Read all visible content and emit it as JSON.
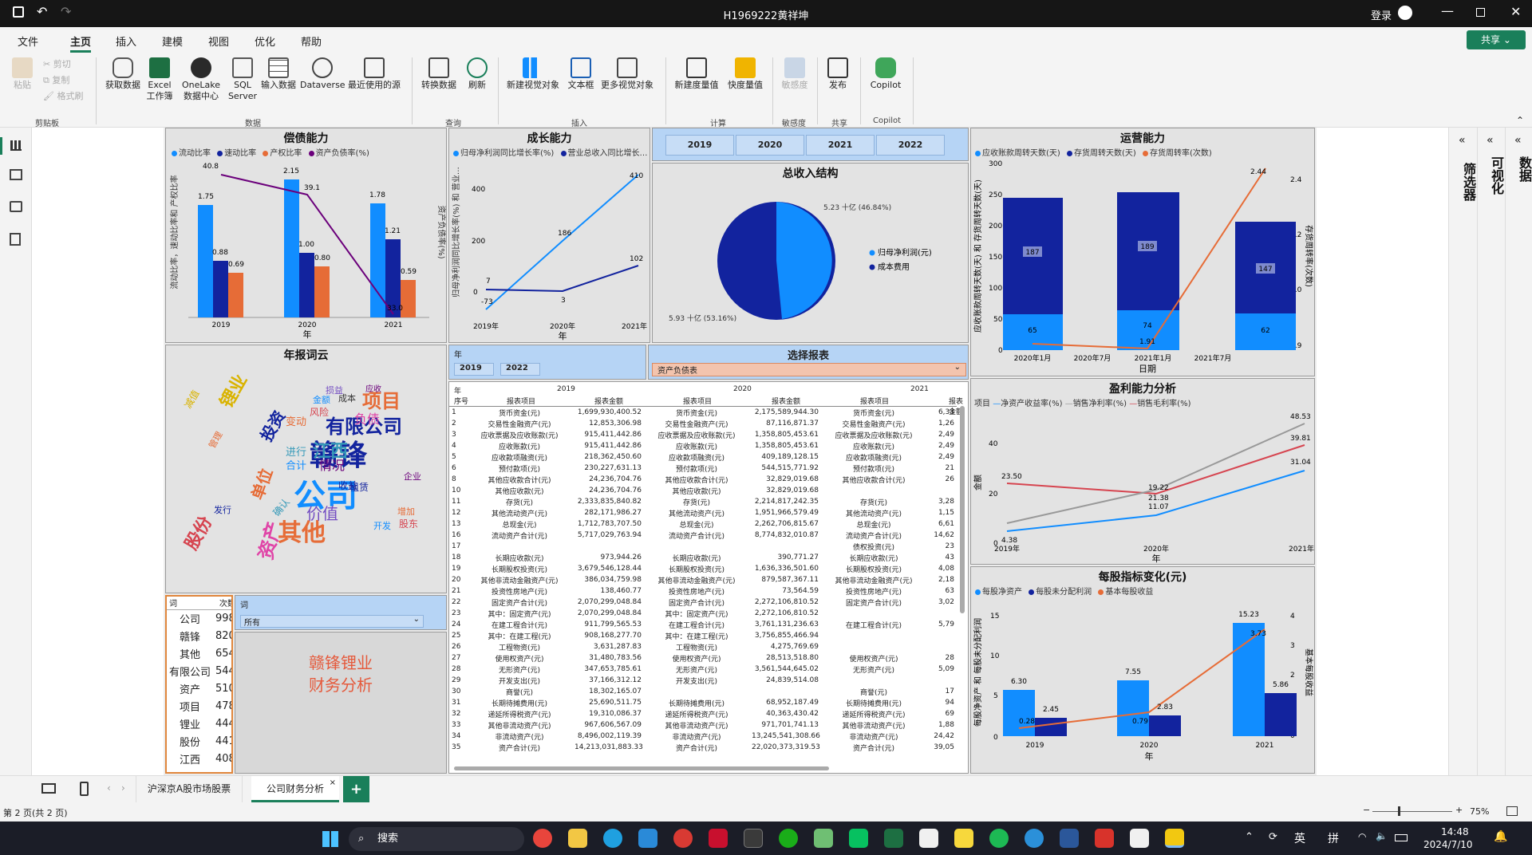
{
  "window": {
    "title": "H1969222黄祥坤",
    "login": "登录"
  },
  "menu": [
    "文件",
    "主页",
    "插入",
    "建模",
    "视图",
    "优化",
    "帮助"
  ],
  "share": "共享",
  "ribbon": {
    "clip": [
      "粘贴",
      "剪切",
      "复制",
      "格式刷"
    ],
    "clip_group": "剪贴板",
    "data_btns": [
      "获取数据",
      "Excel 工作簿",
      "OneLake 数据中心",
      "SQL Server",
      "输入数据",
      "Dataverse",
      "最近使用的源"
    ],
    "data_group": "数据",
    "query_btns": [
      "转换数据",
      "刷新"
    ],
    "query_group": "查询",
    "insert_btns": [
      "新建视觉对象",
      "文本框",
      "更多视觉对象"
    ],
    "insert_group": "插入",
    "calc_btns": [
      "新建度量值",
      "快度量值"
    ],
    "calc_group": "计算",
    "sens_btns": [
      "敏感度"
    ],
    "sens_group": "敏感度",
    "share_btns": [
      "发布"
    ],
    "share_group": "共享",
    "copilot_btns": [
      "Copilot"
    ],
    "copilot_group": "Copilot"
  },
  "panes": {
    "filter": "筛选器",
    "viz": "可视化",
    "data": "数据"
  },
  "debt": {
    "title": "偿债能力",
    "legend": [
      "流动比率",
      "速动比率",
      "产权比率",
      "资产负债率(%)"
    ],
    "ylabel": "流动比率，速动比率和 产权比率",
    "y2label": "资产负债率(%)",
    "xlabel": "年",
    "labels": {
      "c1": [
        "1.75",
        "2.15",
        "1.78"
      ],
      "c2": [
        "0.88",
        "1.00",
        "1.21"
      ],
      "c3": [
        "0.69",
        "0.80",
        "0.59"
      ],
      "c4": [
        "40.8",
        "39.1",
        "33.0"
      ]
    }
  },
  "growth": {
    "title": "成长能力",
    "legend": [
      "归母净利润同比增长率(%)",
      "营业总收入同比增长…"
    ],
    "ylabel": "归母净利润同比增长率(%) 和 营业…",
    "xlabel": "年",
    "labels": {
      "s1": [
        "-73",
        "186",
        "410"
      ],
      "s2": [
        "7",
        "3",
        "102"
      ],
      "zero": "0"
    }
  },
  "year_slicer": {
    "years": [
      "2019",
      "2020",
      "2021",
      "2022"
    ]
  },
  "revenue": {
    "title": "总收入结构",
    "legend": [
      "归母净利润(元)",
      "成本费用"
    ],
    "labels": [
      "5.23 十亿 (46.84%)",
      "5.93 十亿 (53.16%)"
    ]
  },
  "ops": {
    "title": "运营能力",
    "legend": [
      "应收账款周转天数(天)",
      "存货周转天数(天)",
      "存货周转率(次数)"
    ],
    "ylabel": "应收账款周转天数(天) 和 存货周转天数(天)",
    "y2label": "存货周转率(次数)",
    "xlabel": "日期",
    "xticks": [
      "2020年1月",
      "2020年7月",
      "2021年1月",
      "2021年7月"
    ],
    "labels": {
      "inv": [
        "187",
        "189",
        "147"
      ],
      "ar": [
        "65",
        "74",
        "62"
      ],
      "rate": [
        "1.91",
        "2.44"
      ]
    }
  },
  "wordcloud": {
    "title": "年报词云",
    "words": [
      "赣锋",
      "公司",
      "有限公司",
      "其他",
      "资产",
      "项目",
      "锂业",
      "股份",
      "江西",
      "投资",
      "价值",
      "情况",
      "单位",
      "合计",
      "进行",
      "企业",
      "租赁",
      "收益",
      "变动",
      "减值",
      "负债",
      "发行",
      "增加",
      "风险",
      "确认",
      "金额",
      "成本",
      "损益",
      "应收",
      "管理",
      "股东",
      "开发"
    ]
  },
  "word_table": {
    "h1": "词",
    "h2": "次数",
    "rows": [
      [
        "公司",
        "998"
      ],
      [
        "赣锋",
        "820"
      ],
      [
        "其他",
        "654"
      ],
      [
        "有限公司",
        "544"
      ],
      [
        "资产",
        "510"
      ],
      [
        "项目",
        "478"
      ],
      [
        "锂业",
        "444"
      ],
      [
        "股份",
        "441"
      ],
      [
        "江西",
        "408"
      ]
    ]
  },
  "word_slicer": {
    "label": "词",
    "value": "所有"
  },
  "textbox": {
    "line1": "赣锋锂业",
    "line2": "财务分析"
  },
  "report_select": {
    "title": "选择报表",
    "year_label": "年",
    "from": "2019",
    "to": "2022",
    "value": "资产负债表"
  },
  "balance": {
    "years": [
      "2019",
      "2020",
      "2021"
    ],
    "hdr": [
      "年",
      "序号",
      "报表项目",
      "报表金额"
    ],
    "rows": [
      [
        "1",
        "货币资金(元)",
        "1,699,930,400.52",
        "货币资金(元)",
        "2,175,589,944.30",
        "货币资金(元)",
        "6,33"
      ],
      [
        "2",
        "交易性金融资产(元)",
        "12,853,306.98",
        "交易性金融资产(元)",
        "87,116,871.37",
        "交易性金融资产(元)",
        "1,26"
      ],
      [
        "3",
        "应收票据及应收账款(元)",
        "915,411,442.86",
        "应收票据及应收账款(元)",
        "1,358,805,453.61",
        "应收票据及应收账款(元)",
        "2,49"
      ],
      [
        "4",
        "应收账款(元)",
        "915,411,442.86",
        "应收账款(元)",
        "1,358,805,453.61",
        "应收账款(元)",
        "2,49"
      ],
      [
        "5",
        "应收款项融资(元)",
        "218,362,450.60",
        "应收款项融资(元)",
        "409,189,128.15",
        "应收款项融资(元)",
        "2,49"
      ],
      [
        "6",
        "预付款项(元)",
        "230,227,631.13",
        "预付款项(元)",
        "544,515,771.92",
        "预付款项(元)",
        "21"
      ],
      [
        "8",
        "其他应收款合计(元)",
        "24,236,704.76",
        "其他应收款合计(元)",
        "32,829,019.68",
        "其他应收款合计(元)",
        "26"
      ],
      [
        "10",
        "其他应收款(元)",
        "24,236,704.76",
        "其他应收款(元)",
        "32,829,019.68",
        "",
        " "
      ],
      [
        "11",
        "存货(元)",
        "2,333,835,840.82",
        "存货(元)",
        "2,214,817,242.35",
        "存货(元)",
        "3,28"
      ],
      [
        "12",
        "其他流动资产(元)",
        "282,171,986.27",
        "其他流动资产(元)",
        "1,951,966,579.49",
        "其他流动资产(元)",
        "1,15"
      ],
      [
        "13",
        "总现金(元)",
        "1,712,783,707.50",
        "总现金(元)",
        "2,262,706,815.67",
        "总现金(元)",
        "6,61"
      ],
      [
        "16",
        "流动资产合计(元)",
        "5,717,029,763.94",
        "流动资产合计(元)",
        "8,774,832,010.87",
        "流动资产合计(元)",
        "14,62"
      ],
      [
        "17",
        "",
        "",
        "",
        "",
        "债权投资(元)",
        "23"
      ],
      [
        "18",
        "长期应收款(元)",
        "973,944.26",
        "长期应收款(元)",
        "390,771.27",
        "长期应收款(元)",
        "43"
      ],
      [
        "19",
        "长期股权投资(元)",
        "3,679,546,128.44",
        "长期股权投资(元)",
        "1,636,336,501.60",
        "长期股权投资(元)",
        "4,08"
      ],
      [
        "20",
        "其他非流动金融资产(元)",
        "386,034,759.98",
        "其他非流动金融资产(元)",
        "879,587,367.11",
        "其他非流动金融资产(元)",
        "2,18"
      ],
      [
        "21",
        "投资性房地产(元)",
        "138,460.77",
        "投资性房地产(元)",
        "73,564.59",
        "投资性房地产(元)",
        "63"
      ],
      [
        "22",
        "固定资产合计(元)",
        "2,070,299,048.84",
        "固定资产合计(元)",
        "2,272,106,810.52",
        "固定资产合计(元)",
        "3,02"
      ],
      [
        "23",
        "其中：固定资产(元)",
        "2,070,299,048.84",
        "其中：固定资产(元)",
        "2,272,106,810.52",
        "",
        " "
      ],
      [
        "24",
        "在建工程合计(元)",
        "911,799,565.53",
        "在建工程合计(元)",
        "3,761,131,236.63",
        "在建工程合计(元)",
        "5,79"
      ],
      [
        "25",
        "其中：在建工程(元)",
        "908,168,277.70",
        "其中：在建工程(元)",
        "3,756,855,466.94",
        "",
        " "
      ],
      [
        "26",
        "工程物资(元)",
        "3,631,287.83",
        "工程物资(元)",
        "4,275,769.69",
        "",
        " "
      ],
      [
        "27",
        "使用权资产(元)",
        "31,480,783.56",
        "使用权资产(元)",
        "28,513,518.80",
        "使用权资产(元)",
        "28"
      ],
      [
        "28",
        "无形资产(元)",
        "347,653,785.61",
        "无形资产(元)",
        "3,561,544,645.02",
        "无形资产(元)",
        "5,09"
      ],
      [
        "29",
        "开发支出(元)",
        "37,166,312.12",
        "开发支出(元)",
        "24,839,514.08",
        "",
        " "
      ],
      [
        "30",
        "商誉(元)",
        "18,302,165.07",
        "",
        "",
        "商誉(元)",
        "17"
      ],
      [
        "31",
        "长期待摊费用(元)",
        "25,690,511.75",
        "长期待摊费用(元)",
        "68,952,187.49",
        "长期待摊费用(元)",
        "94"
      ],
      [
        "32",
        "递延所得税资产(元)",
        "19,310,086.37",
        "递延所得税资产(元)",
        "40,363,430.42",
        "递延所得税资产(元)",
        "69"
      ],
      [
        "33",
        "其他非流动资产(元)",
        "967,606,567.09",
        "其他非流动资产(元)",
        "971,701,741.13",
        "其他非流动资产(元)",
        "1,88"
      ],
      [
        "34",
        "非流动资产(元)",
        "8,496,002,119.39",
        "非流动资产(元)",
        "13,245,541,308.66",
        "非流动资产(元)",
        "24,42"
      ],
      [
        "35",
        "资产合计(元)",
        "14,213,031,883.33",
        "资产合计(元)",
        "22,020,373,319.53",
        "资产合计(元)",
        "39,05"
      ]
    ]
  },
  "profit": {
    "title": "盈利能力分析",
    "legend_label": "项目",
    "legend": [
      "净资产收益率(%)",
      "销售净利率(%)",
      "销售毛利率(%)"
    ],
    "ylabel": "金额",
    "xlabel": "年",
    "labels": {
      "s1": [
        "4.38",
        "11.07",
        "31.04"
      ],
      "s2": [
        "23.50",
        "19.22",
        "39.81"
      ],
      "s3": [
        "21.38",
        "48.53"
      ]
    }
  },
  "pershare": {
    "title": "每股指标变化(元)",
    "legend": [
      "每股净资产",
      "每股未分配利润",
      "基本每股收益"
    ],
    "ylabel": "每股净资产 和 每股未分配利润",
    "y2label": "基本每股收益",
    "xlabel": "年",
    "labels": {
      "nav": [
        "6.30",
        "7.55",
        "15.23"
      ],
      "ret": [
        "2.45",
        "2.83",
        "5.86"
      ],
      "eps": [
        "0.28",
        "0.79",
        "3.73"
      ]
    }
  },
  "tabs": [
    "沪深京A股市场股票",
    "公司财务分析"
  ],
  "status": {
    "page": "第 2 页(共 2 页)",
    "zoom": "75%"
  },
  "taskbar": {
    "search": "搜索",
    "ime1": "英",
    "ime2": "拼",
    "time": "14:48",
    "date": "2024/7/10"
  },
  "colors": {
    "light_blue": "#118DFF",
    "dark_blue": "#12239E",
    "orange": "#E66C37",
    "purple": "#6B007B",
    "gray": "#999999",
    "red": "#D64550",
    "accent": "#1a7f5a"
  },
  "chart_data": [
    {
      "type": "bar",
      "title": "偿债能力",
      "categories": [
        "2019",
        "2020",
        "2021"
      ],
      "series": [
        {
          "name": "流动比率",
          "values": [
            1.75,
            2.15,
            1.78
          ]
        },
        {
          "name": "速动比率",
          "values": [
            0.88,
            1.0,
            1.21
          ]
        },
        {
          "name": "产权比率",
          "values": [
            0.69,
            0.8,
            0.59
          ]
        },
        {
          "name": "资产负债率(%)",
          "values": [
            40.8,
            39.1,
            33.0
          ]
        }
      ]
    },
    {
      "type": "line",
      "title": "成长能力",
      "categories": [
        "2019年",
        "2020年",
        "2021年"
      ],
      "series": [
        {
          "name": "归母净利润同比增长率(%)",
          "values": [
            -73,
            186,
            410
          ]
        },
        {
          "name": "营业总收入同比增长…",
          "values": [
            7,
            3,
            102
          ]
        }
      ]
    },
    {
      "type": "pie",
      "title": "总收入结构",
      "categories": [
        "归母净利润(元)",
        "成本费用"
      ],
      "values": [
        5.23,
        5.93
      ]
    },
    {
      "type": "bar",
      "title": "运营能力",
      "categories": [
        "2020年1月",
        "2021年1月",
        "2021年7月"
      ],
      "series": [
        {
          "name": "应收账款周转天数(天)",
          "values": [
            65,
            74,
            62
          ]
        },
        {
          "name": "存货周转天数(天)",
          "values": [
            187,
            189,
            147
          ]
        },
        {
          "name": "存货周转率(次数)",
          "values": [
            1.95,
            1.91,
            2.44
          ]
        }
      ]
    },
    {
      "type": "line",
      "title": "盈利能力分析",
      "categories": [
        "2019年",
        "2020年",
        "2021年"
      ],
      "series": [
        {
          "name": "净资产收益率(%)",
          "values": [
            4.38,
            11.07,
            31.04
          ]
        },
        {
          "name": "销售净利率(%)",
          "values": [
            23.5,
            19.22,
            39.81
          ]
        },
        {
          "name": "销售毛利率(%)",
          "values": [
            7.5,
            21.38,
            48.53
          ]
        }
      ]
    },
    {
      "type": "bar",
      "title": "每股指标变化(元)",
      "categories": [
        "2019",
        "2020",
        "2021"
      ],
      "series": [
        {
          "name": "每股净资产",
          "values": [
            6.3,
            7.55,
            15.23
          ]
        },
        {
          "name": "每股未分配利润",
          "values": [
            2.45,
            2.83,
            5.86
          ]
        },
        {
          "name": "基本每股收益",
          "values": [
            0.28,
            0.79,
            3.73
          ]
        }
      ]
    }
  ]
}
